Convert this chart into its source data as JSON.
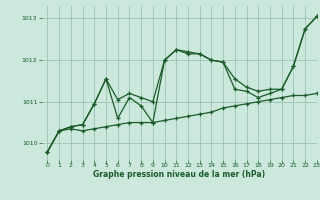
{
  "xlabel": "Graphe pression niveau de la mer (hPa)",
  "xlim": [
    -0.5,
    23
  ],
  "ylim": [
    1009.6,
    1013.3
  ],
  "yticks": [
    1010,
    1011,
    1012,
    1013
  ],
  "xticks": [
    0,
    1,
    2,
    3,
    4,
    5,
    6,
    7,
    8,
    9,
    10,
    11,
    12,
    13,
    14,
    15,
    16,
    17,
    18,
    19,
    20,
    21,
    22,
    23
  ],
  "bg_color": "#cce8dc",
  "grid_color": "#9dc4b4",
  "line_color": "#1a5c2a",
  "series": {
    "main": [
      1009.8,
      1010.3,
      1010.4,
      1010.45,
      1010.95,
      1011.55,
      1010.6,
      1011.1,
      1010.9,
      1010.5,
      1012.0,
      1012.25,
      1012.15,
      1012.15,
      1012.0,
      1011.95,
      1011.3,
      1011.25,
      1011.1,
      1011.2,
      1011.3,
      1011.85,
      1012.75,
      1013.05
    ],
    "low": [
      1009.8,
      1010.3,
      1010.35,
      1010.3,
      1010.35,
      1010.4,
      1010.45,
      1010.5,
      1010.5,
      1010.5,
      1010.55,
      1010.6,
      1010.65,
      1010.7,
      1010.75,
      1010.85,
      1010.9,
      1010.95,
      1011.0,
      1011.05,
      1011.1,
      1011.15,
      1011.15,
      1011.2
    ],
    "high": [
      1009.8,
      1010.3,
      1010.4,
      1010.45,
      1010.95,
      1011.55,
      1011.05,
      1011.2,
      1011.1,
      1011.0,
      1012.0,
      1012.25,
      1012.2,
      1012.15,
      1012.0,
      1011.95,
      1011.55,
      1011.35,
      1011.25,
      1011.3,
      1011.3,
      1011.85,
      1012.75,
      1013.05
    ]
  }
}
